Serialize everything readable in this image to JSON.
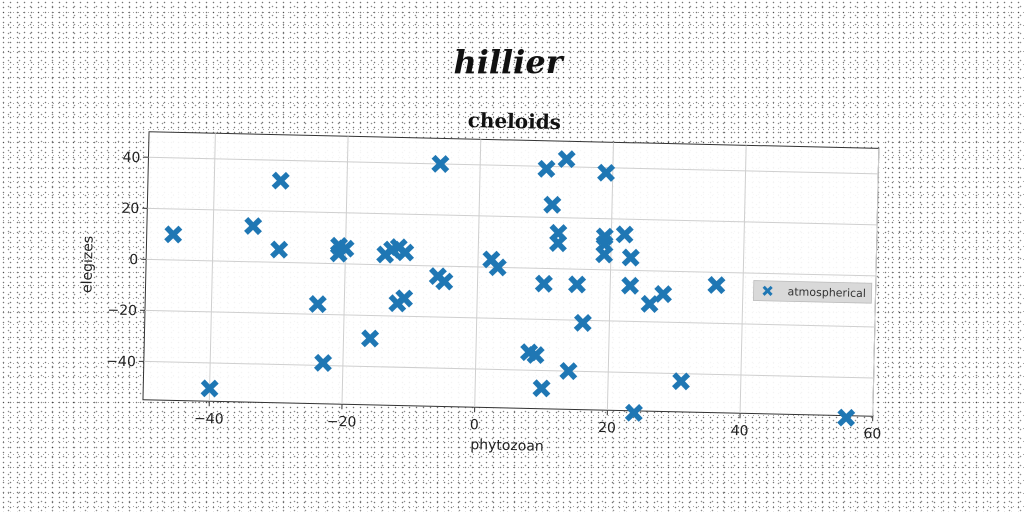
{
  "chart_data": {
    "type": "scatter",
    "suptitle": "hillier",
    "title": "cheloids",
    "xlabel": "phytozoan",
    "ylabel": "elegizes",
    "xlim": [
      -50,
      60
    ],
    "ylim": [
      -55,
      50
    ],
    "xticks": [
      -40,
      -20,
      0,
      20,
      40,
      60
    ],
    "yticks": [
      -40,
      -20,
      0,
      20,
      40
    ],
    "grid": true,
    "legend_position": "right",
    "series": [
      {
        "name": "atmospherical",
        "color": "#1f77b4",
        "marker": "x",
        "points": [
          [
            -46,
            10
          ],
          [
            -40,
            -50
          ],
          [
            -34,
            14
          ],
          [
            -30,
            32
          ],
          [
            -30,
            5
          ],
          [
            -24,
            -16
          ],
          [
            -23,
            -39
          ],
          [
            -21,
            4
          ],
          [
            -21,
            7
          ],
          [
            -20,
            6
          ],
          [
            -16,
            -29
          ],
          [
            -14,
            4
          ],
          [
            -13,
            6
          ],
          [
            -12,
            -15
          ],
          [
            -12,
            7
          ],
          [
            -11,
            -13
          ],
          [
            -11,
            5
          ],
          [
            -6,
            40
          ],
          [
            -6,
            -4
          ],
          [
            -5,
            -6
          ],
          [
            2,
            3
          ],
          [
            3,
            0
          ],
          [
            8,
            -33
          ],
          [
            9,
            -34
          ],
          [
            10,
            -47
          ],
          [
            10,
            39
          ],
          [
            10,
            -6
          ],
          [
            11,
            25
          ],
          [
            12,
            14
          ],
          [
            12,
            10
          ],
          [
            13,
            43
          ],
          [
            14,
            -40
          ],
          [
            15,
            -6
          ],
          [
            16,
            -21
          ],
          [
            19,
            38
          ],
          [
            19,
            13
          ],
          [
            19,
            10
          ],
          [
            19,
            6
          ],
          [
            22,
            14
          ],
          [
            23,
            5
          ],
          [
            23,
            -6
          ],
          [
            24,
            -57
          ],
          [
            26,
            -13
          ],
          [
            28,
            -9
          ],
          [
            31,
            -43
          ],
          [
            36,
            -5
          ],
          [
            56,
            -63
          ]
        ]
      }
    ]
  }
}
